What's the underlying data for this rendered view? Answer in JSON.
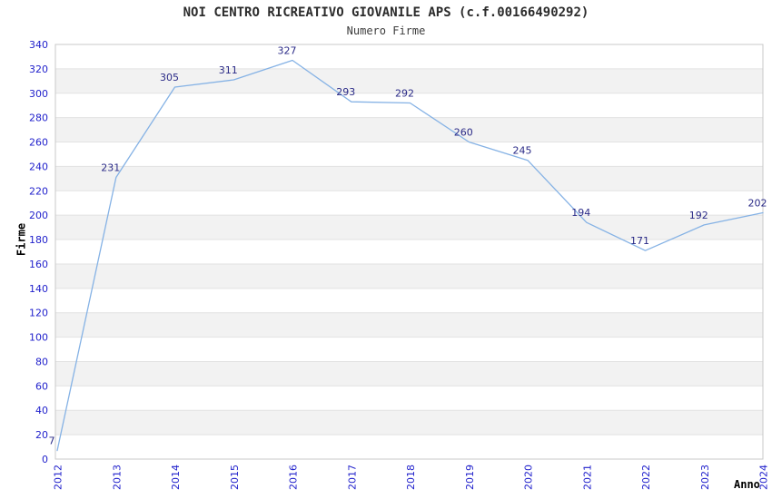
{
  "chart_data": {
    "type": "line",
    "title": "NOI CENTRO RICREATIVO GIOVANILE APS (c.f.00166490292)",
    "subtitle": "Numero Firme",
    "xlabel": "Anno",
    "ylabel": "Firme",
    "categories": [
      "2012",
      "2013",
      "2014",
      "2015",
      "2016",
      "2017",
      "2018",
      "2019",
      "2020",
      "2021",
      "2022",
      "2023",
      "2024"
    ],
    "series": [
      {
        "name": "Numero Firme",
        "values": [
          7,
          231,
          305,
          311,
          327,
          293,
          292,
          260,
          245,
          194,
          171,
          192,
          202
        ]
      }
    ],
    "ylim": [
      0,
      340
    ],
    "ytick_step": 20,
    "grid": true,
    "legend": "none",
    "bands": "alternating-horizontal",
    "point_labels_visible": true,
    "markers": "none",
    "colors": {
      "line": "#85b2e5",
      "tick_labels": "#2222cc",
      "point_labels": "#2a2a87",
      "title": "#2b2b2b",
      "axis_titles": "#000000",
      "band": "#f2f2f2",
      "gridline": "#e2e2e2",
      "plot_border": "#c9c9c9",
      "background": "#ffffff"
    }
  }
}
